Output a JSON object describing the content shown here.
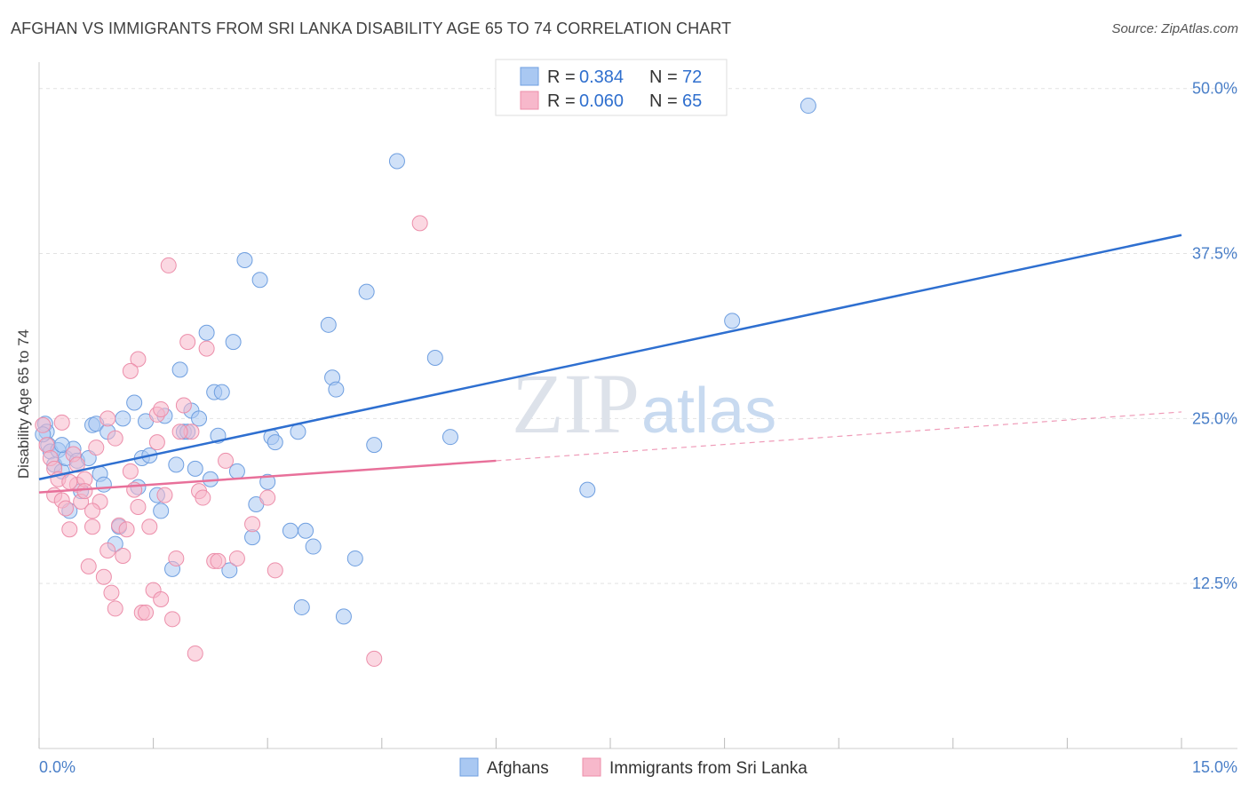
{
  "header": {
    "title": "AFGHAN VS IMMIGRANTS FROM SRI LANKA DISABILITY AGE 65 TO 74 CORRELATION CHART",
    "source": "Source: ZipAtlas.com"
  },
  "watermark": {
    "part1": "ZIP",
    "part2": "atlas"
  },
  "legend": {
    "rows": [
      {
        "r_label": "R =",
        "r_value": "0.384",
        "n_label": "N =",
        "n_value": "72",
        "color": "#a9c8f2"
      },
      {
        "r_label": "R =",
        "r_value": "0.060",
        "n_label": "N =",
        "n_value": "65",
        "color": "#f7b8cb"
      }
    ]
  },
  "chart_data": {
    "type": "scatter",
    "title": "AFGHAN VS IMMIGRANTS FROM SRI LANKA DISABILITY AGE 65 TO 74 CORRELATION CHART",
    "ylabel": "Disability Age 65 to 74",
    "xlabel": "",
    "xlim": [
      0,
      15
    ],
    "ylim": [
      0,
      52
    ],
    "x_tick_labels": [
      "0.0%",
      "15.0%"
    ],
    "y_ticks": [
      12.5,
      25.0,
      37.5,
      50.0
    ],
    "y_tick_labels": [
      "12.5%",
      "25.0%",
      "37.5%",
      "50.0%"
    ],
    "grid": "horizontal dashed",
    "series": [
      {
        "name": "Afghans",
        "color": "#a9c8f2",
        "stroke": "#6f9fe0",
        "trend": {
          "x": [
            0.0,
            15.0
          ],
          "y": [
            20.4,
            38.9
          ],
          "color": "#2e6fd0"
        },
        "points": [
          [
            0.08,
            24.6
          ],
          [
            0.1,
            24.0
          ],
          [
            0.12,
            23.0
          ],
          [
            0.15,
            22.5
          ],
          [
            0.2,
            21.5
          ],
          [
            0.25,
            22.6
          ],
          [
            0.3,
            21.0
          ],
          [
            0.35,
            22.0
          ],
          [
            0.4,
            18.0
          ],
          [
            0.45,
            22.7
          ],
          [
            0.5,
            21.8
          ],
          [
            0.55,
            19.5
          ],
          [
            0.65,
            22.0
          ],
          [
            0.7,
            24.5
          ],
          [
            0.75,
            24.6
          ],
          [
            0.8,
            20.8
          ],
          [
            0.85,
            20.0
          ],
          [
            0.9,
            24.0
          ],
          [
            1.0,
            15.5
          ],
          [
            1.05,
            16.8
          ],
          [
            1.1,
            25.0
          ],
          [
            1.25,
            26.2
          ],
          [
            1.3,
            19.8
          ],
          [
            1.35,
            22.0
          ],
          [
            1.4,
            24.8
          ],
          [
            1.45,
            22.2
          ],
          [
            1.55,
            19.2
          ],
          [
            1.6,
            18.0
          ],
          [
            1.65,
            25.2
          ],
          [
            1.75,
            13.6
          ],
          [
            1.8,
            21.5
          ],
          [
            1.85,
            28.7
          ],
          [
            1.9,
            24.0
          ],
          [
            1.95,
            24.0
          ],
          [
            2.0,
            25.6
          ],
          [
            2.05,
            21.2
          ],
          [
            2.1,
            25.0
          ],
          [
            2.2,
            31.5
          ],
          [
            2.25,
            20.4
          ],
          [
            2.3,
            27.0
          ],
          [
            2.35,
            23.7
          ],
          [
            2.4,
            27.0
          ],
          [
            2.5,
            13.5
          ],
          [
            2.55,
            30.8
          ],
          [
            2.6,
            21.0
          ],
          [
            2.7,
            37.0
          ],
          [
            2.8,
            16.0
          ],
          [
            2.85,
            18.5
          ],
          [
            2.9,
            35.5
          ],
          [
            3.0,
            20.2
          ],
          [
            3.05,
            23.6
          ],
          [
            3.1,
            23.2
          ],
          [
            3.3,
            16.5
          ],
          [
            3.4,
            24.0
          ],
          [
            3.45,
            10.7
          ],
          [
            3.5,
            16.5
          ],
          [
            3.6,
            15.3
          ],
          [
            3.8,
            32.1
          ],
          [
            3.85,
            28.1
          ],
          [
            3.9,
            27.2
          ],
          [
            4.0,
            10.0
          ],
          [
            4.15,
            14.4
          ],
          [
            4.3,
            34.6
          ],
          [
            4.4,
            23.0
          ],
          [
            4.7,
            44.5
          ],
          [
            5.2,
            29.6
          ],
          [
            5.4,
            23.6
          ],
          [
            7.2,
            19.6
          ],
          [
            9.1,
            32.4
          ],
          [
            10.1,
            48.7
          ],
          [
            0.05,
            23.8
          ],
          [
            0.3,
            23.0
          ]
        ]
      },
      {
        "name": "Immigrants from Sri Lanka",
        "color": "#f7b8cb",
        "stroke": "#ec8eaa",
        "trend": {
          "x": [
            0.0,
            6.0
          ],
          "y": [
            19.4,
            21.8
          ],
          "color": "#e8709a",
          "dash_x": [
            6.0,
            15.0
          ],
          "dash_y": [
            21.8,
            25.5
          ]
        },
        "points": [
          [
            0.05,
            24.5
          ],
          [
            0.1,
            23.0
          ],
          [
            0.15,
            22.0
          ],
          [
            0.2,
            21.2
          ],
          [
            0.2,
            19.2
          ],
          [
            0.25,
            20.4
          ],
          [
            0.3,
            18.8
          ],
          [
            0.35,
            18.2
          ],
          [
            0.4,
            16.6
          ],
          [
            0.45,
            22.3
          ],
          [
            0.5,
            20.0
          ],
          [
            0.55,
            18.7
          ],
          [
            0.6,
            20.4
          ],
          [
            0.65,
            13.8
          ],
          [
            0.7,
            16.8
          ],
          [
            0.75,
            22.8
          ],
          [
            0.8,
            18.7
          ],
          [
            0.85,
            13.0
          ],
          [
            0.9,
            15.0
          ],
          [
            0.95,
            11.8
          ],
          [
            1.0,
            10.6
          ],
          [
            1.05,
            16.9
          ],
          [
            1.1,
            14.6
          ],
          [
            1.15,
            16.6
          ],
          [
            1.2,
            21.0
          ],
          [
            1.25,
            19.6
          ],
          [
            1.3,
            29.5
          ],
          [
            1.35,
            10.3
          ],
          [
            1.4,
            10.3
          ],
          [
            1.45,
            16.8
          ],
          [
            1.5,
            12.0
          ],
          [
            1.55,
            23.2
          ],
          [
            1.6,
            11.3
          ],
          [
            1.65,
            19.2
          ],
          [
            1.7,
            36.6
          ],
          [
            1.75,
            9.8
          ],
          [
            1.8,
            14.4
          ],
          [
            1.9,
            26.0
          ],
          [
            1.95,
            30.8
          ],
          [
            2.0,
            24.0
          ],
          [
            2.05,
            7.2
          ],
          [
            2.1,
            19.5
          ],
          [
            2.2,
            30.3
          ],
          [
            2.3,
            14.2
          ],
          [
            2.35,
            14.2
          ],
          [
            2.45,
            21.8
          ],
          [
            2.6,
            14.4
          ],
          [
            2.8,
            17.0
          ],
          [
            3.0,
            19.0
          ],
          [
            3.1,
            13.5
          ],
          [
            4.4,
            6.8
          ],
          [
            5.0,
            39.8
          ],
          [
            1.2,
            28.6
          ],
          [
            0.9,
            25.0
          ],
          [
            1.0,
            23.5
          ],
          [
            0.7,
            18.0
          ],
          [
            0.6,
            19.5
          ],
          [
            0.4,
            20.2
          ],
          [
            0.5,
            21.5
          ],
          [
            1.55,
            25.3
          ],
          [
            1.85,
            24.0
          ],
          [
            1.6,
            25.7
          ],
          [
            2.15,
            19.0
          ],
          [
            1.3,
            18.3
          ],
          [
            0.3,
            24.7
          ]
        ]
      }
    ]
  }
}
